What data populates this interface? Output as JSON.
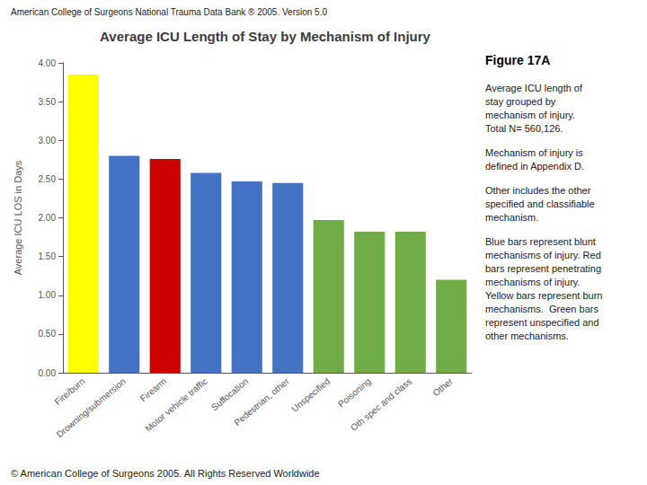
{
  "chart_data": {
    "type": "bar",
    "title": "Average ICU Length of Stay by Mechanism of Injury",
    "ylabel": "Average ICU LOS in Days",
    "annotations": [
      "American College of Surgeons National Trauma Data Bank ® 2005. Version 5.0",
      "© American College of Surgeons 2005. All Rights Reserved Worldwide",
      "Figure 17A",
      "Average ICU length of\nstay grouped by\nmechanism of injury.\nTotal N= 560,126.",
      "Mechanism of injury is\ndefined in Appendix D.",
      "Other includes the other\nspecified and classifiable\nmechanism.",
      "Blue bars represent blunt\nmechanisms of injury. Red\nbars represent penetrating\nmechanisms of injury.\nYellow bars represent burn\nmechanisms.  Green bars\nrepresent unspecified and\nother mechanisms."
    ],
    "categories": [
      "Fire/burn",
      "Drowning/submersion",
      "Firearm",
      "Motor vehicle traffic",
      "Suffocation",
      "Pedestrian, other",
      "Unspecified",
      "Poisoning",
      "Oth spec and class",
      "Other"
    ],
    "values": [
      3.85,
      2.8,
      2.76,
      2.58,
      2.47,
      2.45,
      1.97,
      1.82,
      1.82,
      1.2
    ],
    "colors": [
      "#FFFF00",
      "#4472C4",
      "#CC0000",
      "#4472C4",
      "#4472C4",
      "#4472C4",
      "#70AD47",
      "#70AD47",
      "#70AD47",
      "#70AD47"
    ],
    "ylim": [
      0.0,
      4.0
    ],
    "yticks": [
      {
        "value": 0.0,
        "label": "0.00"
      },
      {
        "value": 0.5,
        "label": "0.50"
      },
      {
        "value": 1.0,
        "label": "1.00"
      },
      {
        "value": 1.5,
        "label": "1.50"
      },
      {
        "value": 2.0,
        "label": "2.00"
      },
      {
        "value": 2.5,
        "label": "2.50"
      },
      {
        "value": 3.0,
        "label": "3.00"
      },
      {
        "value": 3.5,
        "label": "3.50"
      },
      {
        "value": 4.0,
        "label": "4.00"
      }
    ],
    "grid": false
  }
}
